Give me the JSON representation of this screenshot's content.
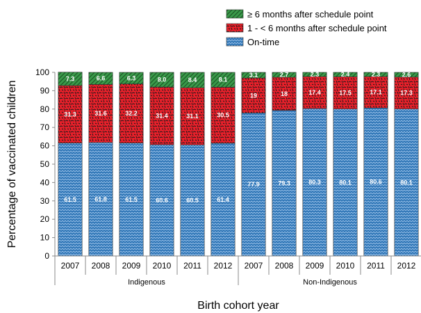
{
  "chart_data": {
    "type": "bar",
    "stacked": true,
    "xlabel": "Birth cohort year",
    "ylabel": "Percentage of vaccinated children",
    "ylim": [
      0,
      100
    ],
    "yticks": [
      0,
      10,
      20,
      30,
      40,
      50,
      60,
      70,
      80,
      90,
      100
    ],
    "categories": [
      "2007",
      "2008",
      "2009",
      "2010",
      "2011",
      "2012",
      "2007",
      "2008",
      "2009",
      "2010",
      "2011",
      "2012"
    ],
    "groups": [
      {
        "label": "Indigenous",
        "count": 6
      },
      {
        "label": "Non-Indigenous",
        "count": 6
      }
    ],
    "legend_position": "top-right",
    "series": [
      {
        "name": "On-time",
        "color": "#2e75b6",
        "values": [
          61.5,
          61.8,
          61.5,
          60.6,
          60.5,
          61.4,
          77.9,
          79.3,
          80.3,
          80.1,
          80.6,
          80.1
        ],
        "labels": [
          "61.5",
          "61.8",
          "61.5",
          "60.6",
          "60.5",
          "61.4",
          "77.9",
          "79.3",
          "80.3",
          "80.1",
          "80.6",
          "80.1"
        ]
      },
      {
        "name": "1 - < 6 months after schedule point",
        "color": "#e8202a",
        "values": [
          31.3,
          31.6,
          32.2,
          31.4,
          31.1,
          30.5,
          19,
          18,
          17.4,
          17.5,
          17.1,
          17.3
        ],
        "labels": [
          "31.3",
          "31.6",
          "32.2",
          "31.4",
          "31.1",
          "30.5",
          "19",
          "18",
          "17.4",
          "17.5",
          "17.1",
          "17.3"
        ]
      },
      {
        "name": "≥ 6 months after schedule point",
        "color": "#3a9a4a",
        "values": [
          7.3,
          6.6,
          6.3,
          8.0,
          8.4,
          8.1,
          3.1,
          2.7,
          2.3,
          2.4,
          2.3,
          2.6
        ],
        "labels": [
          "7.3",
          "6.6",
          "6.3",
          "8.0",
          "8.4",
          "8.1",
          "3.1",
          "2.7",
          "2.3",
          "2.4",
          "2.3",
          "2.6"
        ]
      }
    ]
  }
}
